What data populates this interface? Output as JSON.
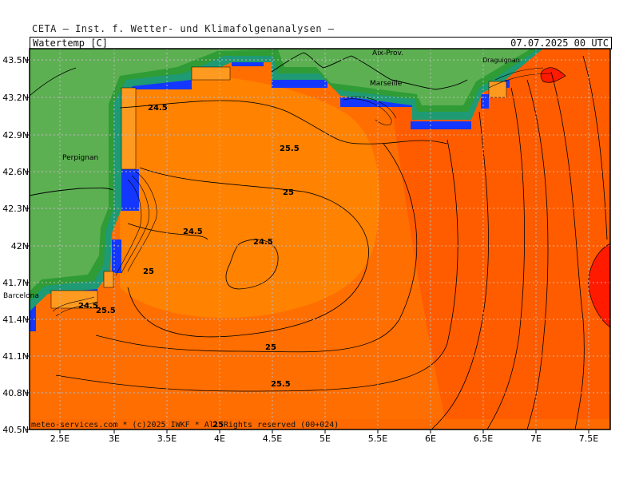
{
  "header": {
    "title": "CETA – Inst. f. Wetter- und Klimafolgenanalysen –"
  },
  "map": {
    "variable": "Watertemp_[C]",
    "valid_time": "07.07.2025 00 UTC",
    "copyright": "meteo-services.com * (c)2025 IWKF * All Rights reserved (00+024)",
    "lat_ticks": [
      "43.5N",
      "43.2N",
      "42.9N",
      "42.6N",
      "42.3N",
      "42N",
      "41.7N",
      "41.4N",
      "41.1N",
      "40.8N",
      "40.5N"
    ],
    "lon_ticks": [
      "2.5E",
      "3E",
      "3.5E",
      "4E",
      "4.5E",
      "5E",
      "5.5E",
      "6E",
      "6.5E",
      "7E",
      "7.5E"
    ],
    "cities": [
      {
        "name": "Aix-Prov."
      },
      {
        "name": "Marseille"
      },
      {
        "name": "Draguignan"
      },
      {
        "name": "Perpignan"
      },
      {
        "name": "Barcelona"
      }
    ],
    "contour_labels": [
      "24.5",
      "25.5",
      "25",
      "24.5",
      "24.5",
      "25",
      "24.5",
      "25.5",
      "25",
      "25.5",
      "25"
    ],
    "colors": {
      "land": "#5cb052",
      "coast_dark": "#2f9c35",
      "shelf_teal": "#1e9a74",
      "cold_blue": "#1437ff",
      "sea_24": "#ff8a00",
      "sea_25": "#ff6e00",
      "sea_26": "#ff5a00",
      "hot_red": "#ff1a00"
    }
  }
}
